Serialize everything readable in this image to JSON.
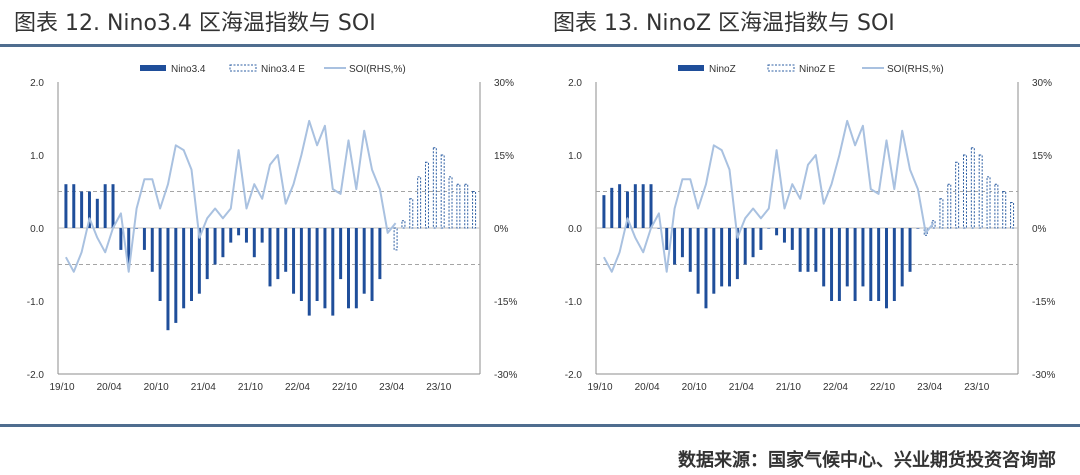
{
  "source": "数据来源：国家气候中心、兴业期货投资咨询部",
  "colors": {
    "bar": "#1f4e9a",
    "forecast": "#2e5fa3",
    "soi": "#a9c1e0",
    "rule": "#4f6d8f",
    "dashed": "#a5a5a5"
  },
  "chart_data": [
    {
      "type": "bar",
      "title": "图表 12. Nino3.4 区海温指数与 SOI",
      "legend": [
        "Nino3.4",
        "Nino3.4 E",
        "SOI(RHS,%)"
      ],
      "x_tick_labels": [
        "19/10",
        "20/04",
        "20/10",
        "21/04",
        "21/10",
        "22/04",
        "22/10",
        "23/04",
        "23/10"
      ],
      "y_left_ticks": [
        "2.0",
        "1.0",
        "0.0",
        "-1.0",
        "-2.0"
      ],
      "y_right_ticks": [
        "30%",
        "15%",
        "0%",
        "-15%",
        "-30%"
      ],
      "ylim": [
        -2,
        2
      ],
      "y2lim": [
        -30,
        30
      ],
      "threshold_lines": [
        0.5,
        -0.5
      ],
      "series": [
        {
          "name": "Nino3.4",
          "kind": "bar",
          "values": [
            0.6,
            0.6,
            0.5,
            0.5,
            0.4,
            0.6,
            0.6,
            -0.3,
            -0.5,
            0.0,
            -0.3,
            -0.6,
            -1.0,
            -1.4,
            -1.3,
            -1.1,
            -1.0,
            -0.9,
            -0.7,
            -0.5,
            -0.4,
            -0.2,
            -0.1,
            -0.2,
            -0.4,
            -0.2,
            -0.8,
            -0.7,
            -0.6,
            -0.9,
            -1.0,
            -1.2,
            -1.0,
            -1.1,
            -1.2,
            -0.7,
            -1.1,
            -1.1,
            -0.9,
            -1.0,
            -0.7,
            0.0
          ]
        },
        {
          "name": "Nino3.4 E",
          "kind": "forecast-bar",
          "values": [
            -0.3,
            0.1,
            0.4,
            0.7,
            0.9,
            1.1,
            1.0,
            0.7,
            0.6,
            0.6,
            0.5
          ]
        },
        {
          "name": "SOI(RHS,%)",
          "kind": "line",
          "values": [
            -6,
            -9,
            -5,
            2,
            -2,
            -5,
            0,
            3,
            -9,
            4,
            10,
            10,
            4,
            9,
            17,
            16,
            12,
            -2,
            2,
            4,
            2,
            4,
            16,
            4,
            9,
            6,
            13,
            15,
            5,
            9,
            15,
            22,
            17,
            21,
            8,
            7,
            18,
            8,
            20,
            12,
            8,
            -1,
            1
          ]
        }
      ]
    },
    {
      "type": "bar",
      "title": "图表 13. NinoZ 区海温指数与 SOI",
      "legend": [
        "NinoZ",
        "NinoZ E",
        "SOI(RHS,%)"
      ],
      "x_tick_labels": [
        "19/10",
        "20/04",
        "20/10",
        "21/04",
        "21/10",
        "22/04",
        "22/10",
        "23/04",
        "23/10"
      ],
      "y_left_ticks": [
        "2.0",
        "1.0",
        "0.0",
        "-1.0",
        "-2.0"
      ],
      "y_right_ticks": [
        "30%",
        "15%",
        "0%",
        "-15%",
        "-30%"
      ],
      "ylim": [
        -2,
        2
      ],
      "y2lim": [
        -30,
        30
      ],
      "threshold_lines": [
        0.5,
        -0.5
      ],
      "series": [
        {
          "name": "NinoZ",
          "kind": "bar",
          "values": [
            0.45,
            0.55,
            0.6,
            0.5,
            0.6,
            0.6,
            0.6,
            0.0,
            -0.3,
            -0.5,
            -0.4,
            -0.6,
            -0.9,
            -1.1,
            -0.9,
            -0.8,
            -0.8,
            -0.7,
            -0.5,
            -0.4,
            -0.3,
            0.0,
            -0.1,
            -0.2,
            -0.3,
            -0.6,
            -0.6,
            -0.6,
            -0.8,
            -1.0,
            -1.0,
            -0.8,
            -1.0,
            -0.8,
            -1.0,
            -1.0,
            -1.1,
            -1.0,
            -0.8,
            -0.6,
            0.0
          ]
        },
        {
          "name": "NinoZ E",
          "kind": "forecast-bar",
          "values": [
            -0.1,
            0.1,
            0.4,
            0.6,
            0.9,
            1.0,
            1.1,
            1.0,
            0.7,
            0.6,
            0.5,
            0.35
          ]
        },
        {
          "name": "SOI(RHS,%)",
          "kind": "line",
          "values": [
            -6,
            -9,
            -5,
            2,
            -2,
            -5,
            0,
            3,
            -9,
            4,
            10,
            10,
            4,
            9,
            17,
            16,
            12,
            -2,
            2,
            4,
            2,
            4,
            16,
            4,
            9,
            6,
            13,
            15,
            5,
            9,
            15,
            22,
            17,
            21,
            8,
            7,
            18,
            8,
            20,
            12,
            8,
            -1,
            1
          ]
        }
      ]
    }
  ]
}
